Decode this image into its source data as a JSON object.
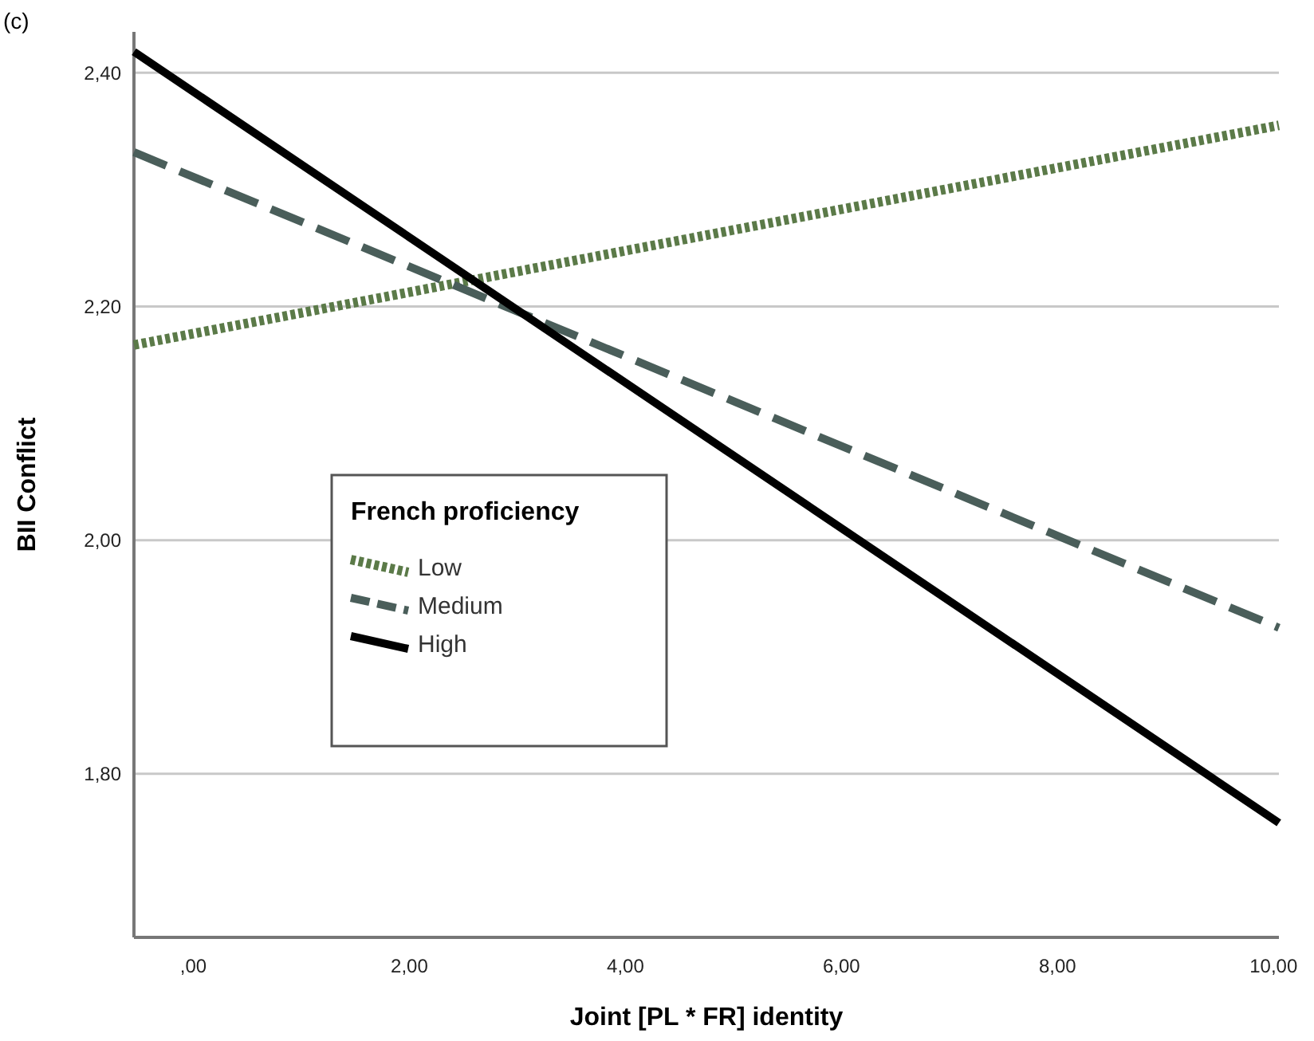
{
  "chart_data": {
    "type": "line",
    "xlabel": "Joint [PL *  FR] identity",
    "ylabel": "BII Conflict",
    "legend_title": "French proficiency",
    "annotations": [
      "(c)"
    ],
    "x": [
      -0.55,
      10.05
    ],
    "xlim": [
      -0.55,
      10.05
    ],
    "xticks": [
      {
        "value": 0,
        "label": ",00"
      },
      {
        "value": 2,
        "label": "2,00"
      },
      {
        "value": 4,
        "label": "4,00"
      },
      {
        "value": 6,
        "label": "6,00"
      },
      {
        "value": 8,
        "label": "8,00"
      },
      {
        "value": 10,
        "label": "10,00"
      }
    ],
    "ylim": [
      1.66,
      2.435
    ],
    "yticks": [
      {
        "value": 1.8,
        "label": "1,80"
      },
      {
        "value": 2.0,
        "label": "2,00"
      },
      {
        "value": 2.2,
        "label": "2,20"
      },
      {
        "value": 2.4,
        "label": "2,40"
      }
    ],
    "grid": "y",
    "legend": "left",
    "marker": "none",
    "series": [
      {
        "name": "Low",
        "color": "#5b7a48",
        "line_style": "dotted",
        "values": [
          2.167,
          2.355
        ]
      },
      {
        "name": "Medium",
        "color": "#4a5e5a",
        "line_style": "dashed",
        "values": [
          2.332,
          1.925
        ]
      },
      {
        "name": "High",
        "color": "#000000",
        "line_style": "solid",
        "values": [
          2.418,
          1.758
        ]
      }
    ]
  }
}
